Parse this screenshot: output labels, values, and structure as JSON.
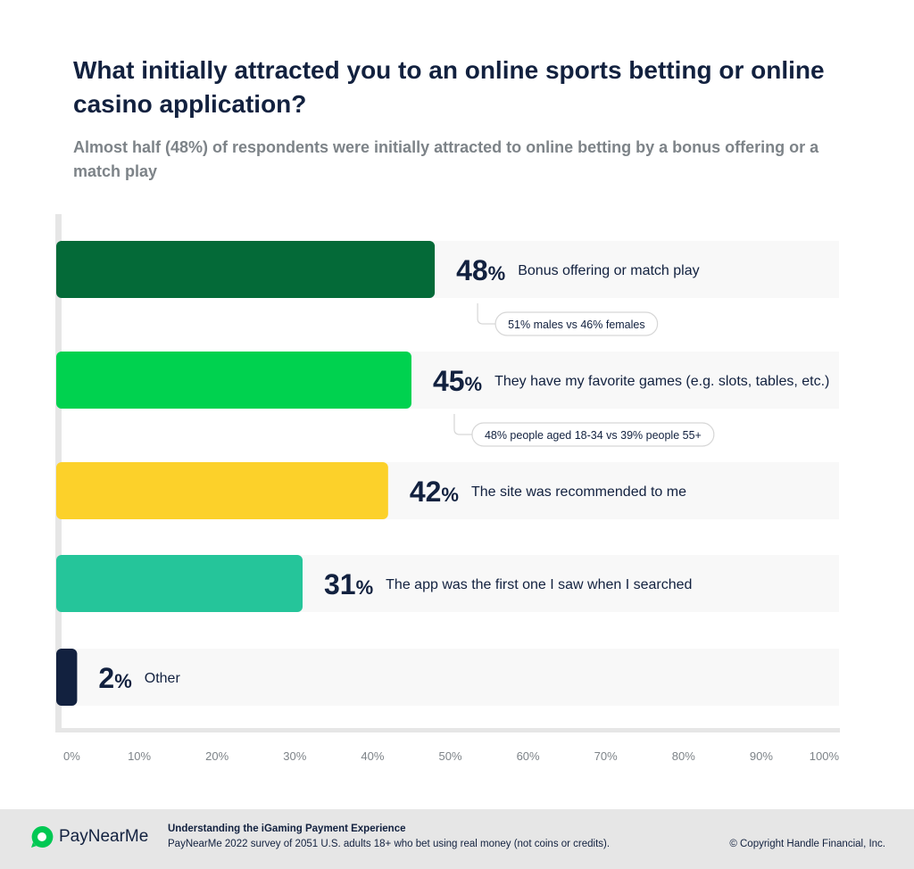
{
  "title": "What initially attracted you to an online sports betting or online casino application?",
  "subtitle": "Almost half (48%) of respondents were initially attracted to online betting by a bonus offering or a match play",
  "colors": {
    "bonus": "#046a38",
    "games": "#00d24f",
    "recommended": "#fcd12a",
    "first_app": "#25c59a",
    "other": "#12213f",
    "track": "#f8f8f8",
    "axis": "#e6e6e6",
    "text_dark": "#12213f",
    "text_muted": "#7d8388"
  },
  "chart_data": {
    "type": "bar",
    "orientation": "horizontal",
    "categories": [
      "Bonus offering or match play",
      "They have my favorite games (e.g. slots, tables, etc.)",
      "The site was recommended to me",
      "The app was the first one I saw when I searched",
      "Other"
    ],
    "values": [
      48,
      45,
      42,
      31,
      2
    ],
    "value_labels": [
      "48",
      "45",
      "42",
      "31",
      "2"
    ],
    "value_suffix": "%",
    "callouts": [
      {
        "category_index": 0,
        "text": "51% males vs 46% females"
      },
      {
        "category_index": 1,
        "text": "48% people aged 18-34 vs 39% people 55+"
      }
    ],
    "xlim": [
      0,
      100
    ],
    "xticks": [
      "0%",
      "10%",
      "20%",
      "30%",
      "40%",
      "50%",
      "60%",
      "70%",
      "80%",
      "90%",
      "100%"
    ],
    "grid": false,
    "legend": "none"
  },
  "footer": {
    "logo_text": "PayNearMe",
    "title": "Understanding the iGaming Payment Experience",
    "source": "PayNearMe 2022 survey of 2051 U.S. adults 18+ who bet using real money (not coins or credits).",
    "copyright": "© Copyright Handle Financial, Inc."
  }
}
